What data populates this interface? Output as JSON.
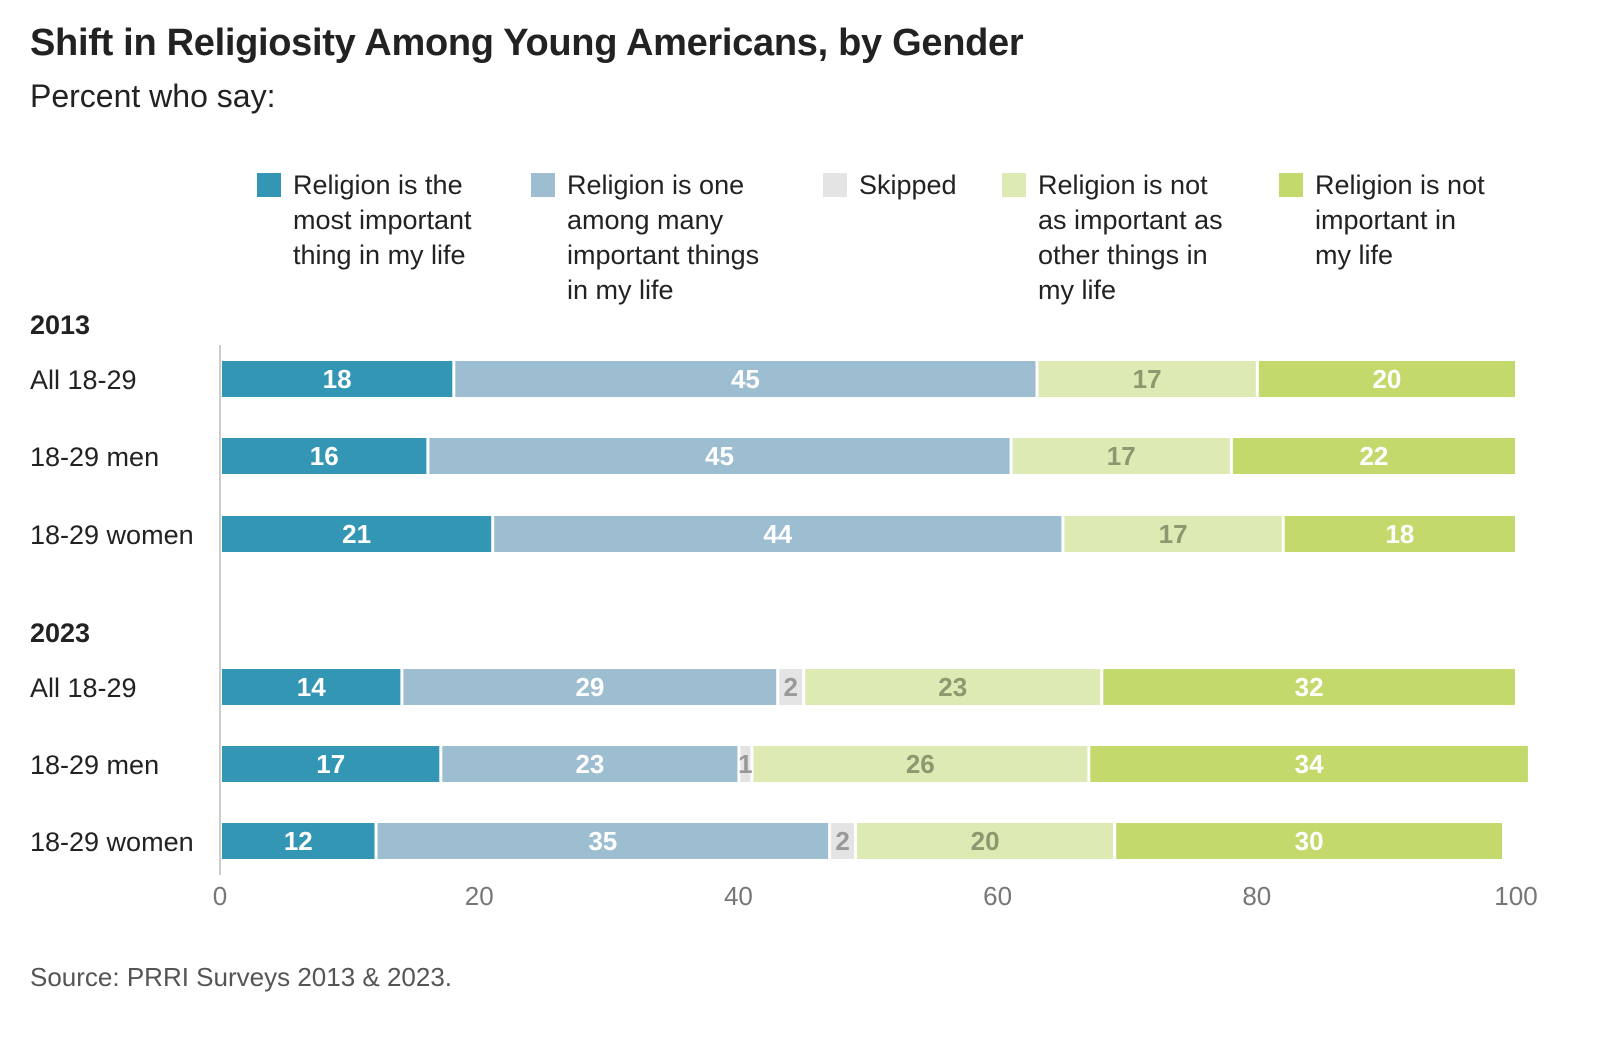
{
  "title": "Shift in Religiosity Among Young Americans, by Gender",
  "subtitle": "Percent who say:",
  "source": "Source: PRRI Surveys 2013 & 2023.",
  "chart_data": {
    "type": "bar",
    "orientation": "horizontal",
    "stacked": true,
    "xlim": [
      0,
      100
    ],
    "x_ticks": [
      "0",
      "20",
      "40",
      "60",
      "80",
      "100"
    ],
    "legend_position": "top",
    "series": [
      {
        "key": "most",
        "name": "Religion is the\nmost important\nthing in my life",
        "color": "#3396b4",
        "label_color": "#ffffff"
      },
      {
        "key": "one_among",
        "name": "Religion is one\namong many\nimportant things\nin my life",
        "color": "#9dbdd1",
        "label_color": "#ffffff"
      },
      {
        "key": "skipped",
        "name": "Skipped",
        "color": "#e4e4e4",
        "label_color": "#999999"
      },
      {
        "key": "not_as",
        "name": "Religion is not\nas important as\nother things in\nmy life",
        "color": "#deeab4",
        "label_color": "#8e9870"
      },
      {
        "key": "not_important",
        "name": "Religion is not\nimportant in\nmy life",
        "color": "#c3d96b",
        "label_color": "#ffffff"
      }
    ],
    "groups": [
      {
        "label": "2013",
        "rows": [
          {
            "category": "All 18-29",
            "values": [
              18,
              45,
              0,
              17,
              20
            ]
          },
          {
            "category": "18-29 men",
            "values": [
              16,
              45,
              0,
              17,
              22
            ]
          },
          {
            "category": "18-29 women",
            "values": [
              21,
              44,
              0,
              17,
              18
            ]
          }
        ]
      },
      {
        "label": "2023",
        "rows": [
          {
            "category": "All 18-29",
            "values": [
              14,
              29,
              2,
              23,
              32
            ]
          },
          {
            "category": "18-29 men",
            "values": [
              17,
              23,
              1,
              26,
              34
            ]
          },
          {
            "category": "18-29 women",
            "values": [
              12,
              35,
              2,
              20,
              30
            ]
          }
        ]
      }
    ]
  }
}
